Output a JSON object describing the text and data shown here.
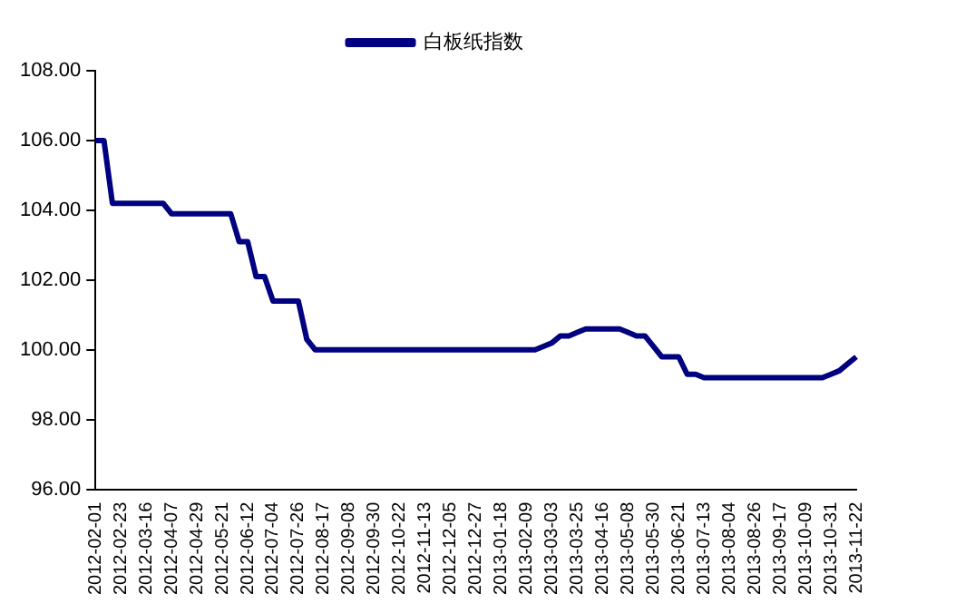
{
  "chart_data": {
    "type": "line",
    "legend": "top",
    "marker": "none",
    "line_style": "solid",
    "categories": [
      "2012-02-01",
      null,
      null,
      "2012-02-23",
      null,
      null,
      "2012-03-16",
      null,
      null,
      "2012-04-07",
      null,
      null,
      "2012-04-29",
      null,
      null,
      "2012-05-21",
      null,
      null,
      "2012-06-12",
      null,
      null,
      "2012-07-04",
      null,
      null,
      "2012-07-26",
      null,
      null,
      "2012-08-17",
      null,
      null,
      "2012-09-08",
      null,
      null,
      "2012-09-30",
      null,
      null,
      "2012-10-22",
      null,
      null,
      "2012-11-13",
      null,
      null,
      "2012-12-05",
      null,
      null,
      "2012-12-27",
      null,
      null,
      "2013-01-18",
      null,
      null,
      "2013-02-09",
      null,
      null,
      "2013-03-03",
      null,
      null,
      "2013-03-25",
      null,
      null,
      "2013-04-16",
      null,
      null,
      "2013-05-08",
      null,
      null,
      "2013-05-30",
      null,
      null,
      "2013-06-21",
      null,
      null,
      "2013-07-13",
      null,
      null,
      "2013-08-04",
      null,
      null,
      "2013-08-26",
      null,
      null,
      "2013-09-17",
      null,
      null,
      "2013-10-09",
      null,
      null,
      "2013-10-31",
      null,
      null,
      "2013-11-22"
    ],
    "ylim": [
      96,
      108
    ],
    "yticks": [
      {
        "value": 96,
        "label": "96.00"
      },
      {
        "value": 98,
        "label": "98.00"
      },
      {
        "value": 100,
        "label": "100.00"
      },
      {
        "value": 102,
        "label": "102.00"
      },
      {
        "value": 104,
        "label": "104.00"
      },
      {
        "value": 106,
        "label": "106.00"
      },
      {
        "value": 108,
        "label": "108.00"
      }
    ],
    "series": [
      {
        "name": "白板纸指数",
        "color": "#000080",
        "values": [
          106,
          106,
          104.2,
          104.2,
          104.2,
          104.2,
          104.2,
          104.2,
          104.2,
          103.9,
          103.9,
          103.9,
          103.9,
          103.9,
          103.9,
          103.9,
          103.9,
          103.1,
          103.1,
          102.1,
          102.1,
          101.4,
          101.4,
          101.4,
          101.4,
          100.3,
          100.0,
          100.0,
          100.0,
          100.0,
          100.0,
          100.0,
          100.0,
          100.0,
          100.0,
          100.0,
          100.0,
          100.0,
          100.0,
          100.0,
          100.0,
          100.0,
          100.0,
          100.0,
          100.0,
          100.0,
          100.0,
          100.0,
          100.0,
          100.0,
          100.0,
          100.0,
          100.0,
          100.1,
          100.2,
          100.4,
          100.4,
          100.5,
          100.6,
          100.6,
          100.6,
          100.6,
          100.6,
          100.5,
          100.4,
          100.4,
          100.1,
          99.8,
          99.8,
          99.8,
          99.3,
          99.3,
          99.2,
          99.2,
          99.2,
          99.2,
          99.2,
          99.2,
          99.2,
          99.2,
          99.2,
          99.2,
          99.2,
          99.2,
          99.2,
          99.2,
          99.2,
          99.3,
          99.4,
          99.6,
          99.8
        ]
      }
    ]
  }
}
